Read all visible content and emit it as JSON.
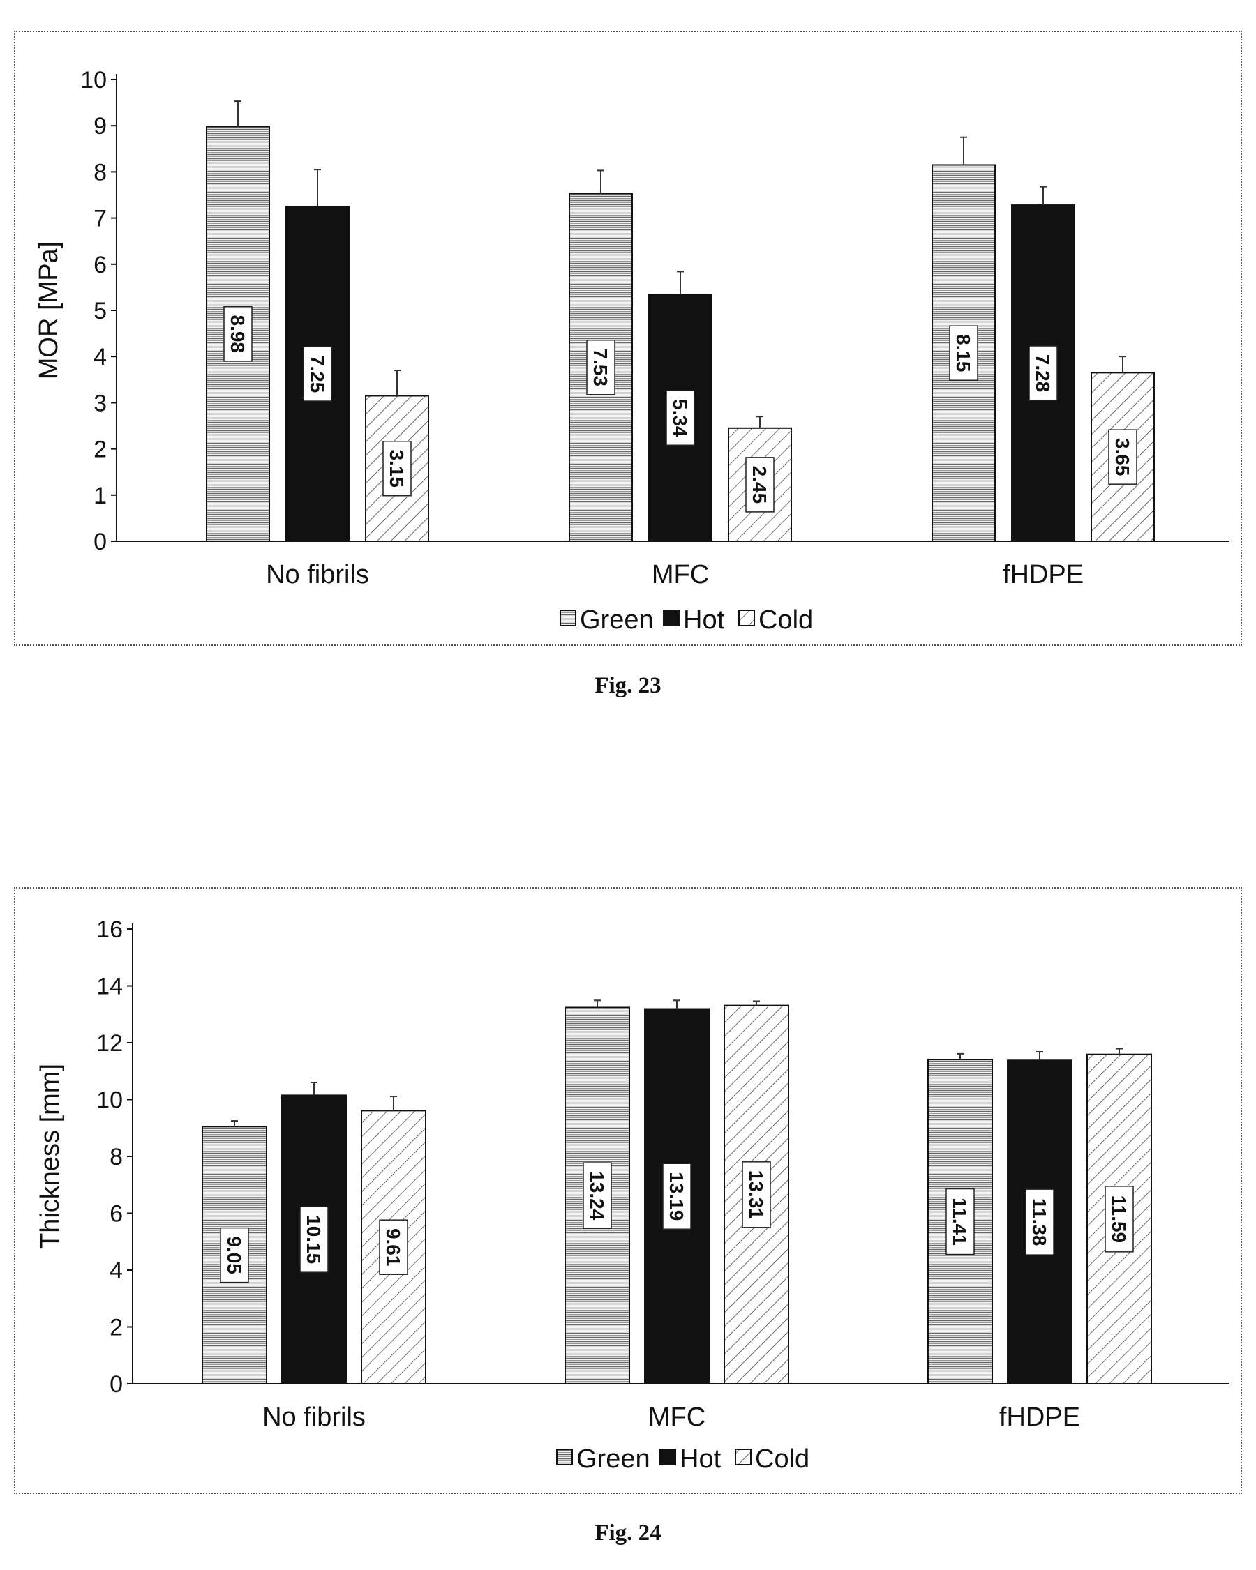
{
  "figures": [
    {
      "caption": "Fig. 23"
    },
    {
      "caption": "Fig. 24"
    }
  ],
  "colors": {
    "green": "#bdbdbd",
    "hot": "#111111",
    "cold": "#ffffff",
    "axis": "#111111",
    "border": "#555555"
  },
  "chart_data": [
    {
      "type": "bar",
      "title": "",
      "xlabel": "",
      "ylabel": "MOR [MPa]",
      "categories": [
        "No fibrils",
        "MFC",
        "fHDPE"
      ],
      "ylim": [
        0,
        10
      ],
      "yticks": [
        0,
        1,
        2,
        3,
        4,
        5,
        6,
        7,
        8,
        9,
        10
      ],
      "grid": false,
      "legend_position": "bottom",
      "series": [
        {
          "name": "Green",
          "pattern": "horizontal-lines",
          "values": [
            8.98,
            7.53,
            8.15
          ],
          "labels": [
            "8.98",
            "7.53",
            "8.15"
          ],
          "error": [
            0.55,
            0.5,
            0.6
          ]
        },
        {
          "name": "Hot",
          "pattern": "solid-black",
          "values": [
            7.25,
            5.34,
            7.28
          ],
          "labels": [
            "7.25",
            "5.34",
            "7.28"
          ],
          "error": [
            0.8,
            0.5,
            0.4
          ]
        },
        {
          "name": "Cold",
          "pattern": "diagonal-lines",
          "values": [
            3.15,
            2.45,
            3.65
          ],
          "labels": [
            "3.15",
            "2.45",
            "3.65"
          ],
          "error": [
            0.55,
            0.25,
            0.35
          ]
        }
      ]
    },
    {
      "type": "bar",
      "title": "",
      "xlabel": "",
      "ylabel": "Thickness [mm]",
      "categories": [
        "No fibrils",
        "MFC",
        "fHDPE"
      ],
      "ylim": [
        0,
        16
      ],
      "yticks": [
        0,
        2,
        4,
        6,
        8,
        10,
        12,
        14,
        16
      ],
      "grid": false,
      "legend_position": "bottom",
      "series": [
        {
          "name": "Green",
          "pattern": "horizontal-lines",
          "values": [
            9.05,
            13.24,
            11.41
          ],
          "labels": [
            "9.05",
            "13.24",
            "11.41"
          ],
          "error": [
            0.2,
            0.25,
            0.2
          ]
        },
        {
          "name": "Hot",
          "pattern": "solid-black",
          "values": [
            10.15,
            13.19,
            11.38
          ],
          "labels": [
            "10.15",
            "13.19",
            "11.38"
          ],
          "error": [
            0.45,
            0.3,
            0.3
          ]
        },
        {
          "name": "Cold",
          "pattern": "diagonal-lines",
          "values": [
            9.61,
            13.31,
            11.59
          ],
          "labels": [
            "9.61",
            "13.31",
            "11.59"
          ],
          "error": [
            0.5,
            0.15,
            0.2
          ]
        }
      ]
    }
  ]
}
